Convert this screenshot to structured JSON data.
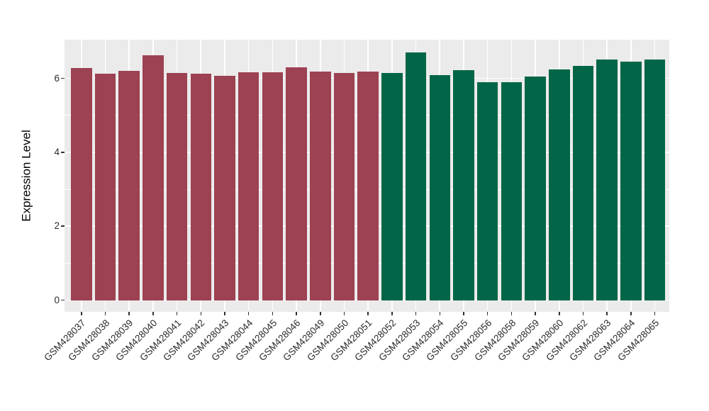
{
  "chart_data": {
    "type": "bar",
    "title": "",
    "xlabel": "",
    "ylabel": "Expression Level",
    "ylim": [
      0,
      7
    ],
    "yticks": [
      0,
      2,
      4,
      6
    ],
    "yticks_minor": [
      1,
      3,
      5
    ],
    "grid": true,
    "legend": false,
    "panel_background": "#EBEBEB",
    "grid_color": "#FFFFFF",
    "tick_color": "#333333",
    "text_color": "#2b2b2b",
    "bar_colors": [
      "#9C4252",
      "#006647"
    ],
    "categories": [
      "GSM428037",
      "GSM428038",
      "GSM428039",
      "GSM428040",
      "GSM428041",
      "GSM428042",
      "GSM428043",
      "GSM428044",
      "GSM428045",
      "GSM428046",
      "GSM428049",
      "GSM428050",
      "GSM428051",
      "GSM428052",
      "GSM428053",
      "GSM428054",
      "GSM428055",
      "GSM428056",
      "GSM428058",
      "GSM428059",
      "GSM428060",
      "GSM428062",
      "GSM428063",
      "GSM428064",
      "GSM428065"
    ],
    "values": [
      6.28,
      6.12,
      6.21,
      6.63,
      6.14,
      6.12,
      6.06,
      6.16,
      6.17,
      6.3,
      6.19,
      6.15,
      6.19,
      6.14,
      6.7,
      6.08,
      6.23,
      5.89,
      5.89,
      6.05,
      6.25,
      6.33,
      6.51,
      6.45,
      6.51
    ],
    "bar_color_index": [
      0,
      0,
      0,
      0,
      0,
      0,
      0,
      0,
      0,
      0,
      0,
      0,
      0,
      1,
      1,
      1,
      1,
      1,
      1,
      1,
      1,
      1,
      1,
      1,
      1
    ]
  }
}
